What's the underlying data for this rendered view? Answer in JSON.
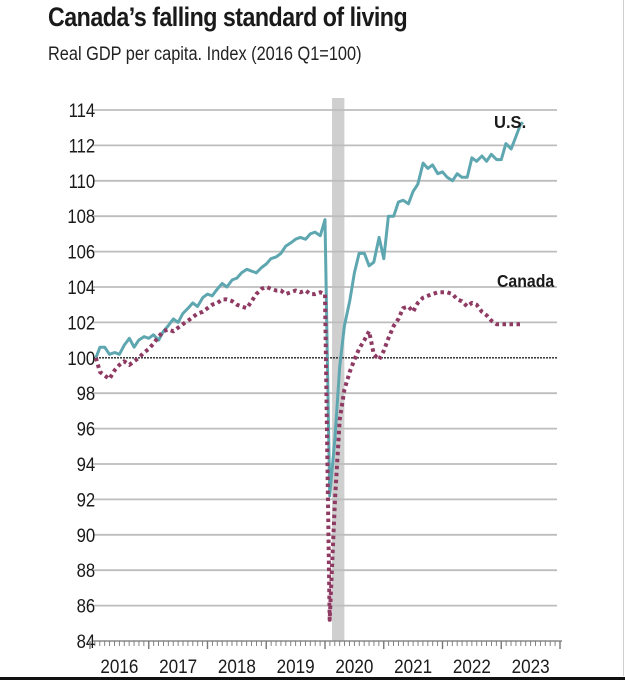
{
  "colors": {
    "us": "#5ea7b0",
    "canada": "#8e3a63",
    "grid": "#bdbdbd",
    "baseline": "#222222",
    "recession": "#cfcfcf"
  },
  "chart_data": {
    "type": "line",
    "title": "Canada’s falling standard of living",
    "subtitle": "Real GDP per capita. Index (2016 Q1=100)",
    "xlabel": "",
    "ylabel": "",
    "xlim": [
      2016,
      2024
    ],
    "ylim": [
      84,
      114
    ],
    "yticks": [
      84,
      86,
      88,
      90,
      92,
      94,
      96,
      98,
      100,
      102,
      104,
      106,
      108,
      110,
      112,
      114
    ],
    "ytick_labels": [
      "84",
      "86",
      "88",
      "90",
      "92",
      "94",
      "96",
      "98",
      "100",
      "102",
      "104",
      "106",
      "108",
      "110",
      "112",
      "114"
    ],
    "xtick_labels": [
      "2016",
      "2017",
      "2018",
      "2019",
      "2020",
      "2021",
      "2022",
      "2023"
    ],
    "grid": true,
    "baseline": 100,
    "shaded_region": {
      "label": "recession",
      "x": [
        2020.12,
        2020.33
      ]
    },
    "series": [
      {
        "name": "U.S.",
        "label": "U.S.",
        "style": "solid",
        "x": [
          2016.1,
          2016.17,
          2016.25,
          2016.33,
          2016.42,
          2016.5,
          2016.58,
          2016.67,
          2016.75,
          2016.83,
          2016.92,
          2017.0,
          2017.08,
          2017.17,
          2017.25,
          2017.33,
          2017.42,
          2017.5,
          2017.58,
          2017.67,
          2017.75,
          2017.83,
          2017.92,
          2018.0,
          2018.08,
          2018.17,
          2018.25,
          2018.33,
          2018.42,
          2018.5,
          2018.58,
          2018.67,
          2018.75,
          2018.83,
          2018.92,
          2019.0,
          2019.08,
          2019.17,
          2019.25,
          2019.33,
          2019.42,
          2019.5,
          2019.58,
          2019.67,
          2019.75,
          2019.83,
          2019.92,
          2020.0,
          2020.08,
          2020.17,
          2020.25,
          2020.33,
          2020.42,
          2020.5,
          2020.58,
          2020.67,
          2020.75,
          2020.83,
          2020.92,
          2021.0,
          2021.08,
          2021.17,
          2021.25,
          2021.33,
          2021.42,
          2021.5,
          2021.58,
          2021.67,
          2021.75,
          2021.83,
          2021.92,
          2022.0,
          2022.08,
          2022.17,
          2022.25,
          2022.33,
          2022.42,
          2022.5,
          2022.58,
          2022.67,
          2022.75,
          2022.83,
          2022.92,
          2023.0,
          2023.08,
          2023.17,
          2023.25,
          2023.33
        ],
        "values": [
          100.0,
          100.6,
          100.6,
          100.2,
          100.3,
          100.2,
          100.7,
          101.1,
          100.6,
          101.0,
          101.2,
          101.1,
          101.3,
          101.0,
          101.5,
          101.8,
          102.2,
          102.0,
          102.5,
          102.8,
          103.1,
          102.9,
          103.4,
          103.6,
          103.5,
          103.9,
          104.2,
          104.0,
          104.4,
          104.5,
          104.8,
          105.0,
          104.9,
          104.8,
          105.1,
          105.3,
          105.6,
          105.7,
          105.9,
          106.3,
          106.5,
          106.7,
          106.8,
          106.7,
          107.0,
          107.1,
          106.9,
          107.8,
          92.2,
          95.5,
          99.5,
          101.8,
          103.2,
          104.8,
          105.9,
          105.9,
          105.2,
          105.4,
          106.8,
          105.6,
          108.0,
          108.0,
          108.8,
          108.9,
          108.7,
          109.4,
          109.8,
          111.0,
          110.7,
          110.9,
          110.4,
          110.5,
          110.2,
          110.0,
          110.4,
          110.2,
          110.2,
          111.3,
          111.1,
          111.4,
          111.1,
          111.5,
          111.2,
          111.2,
          112.1,
          111.8,
          112.5,
          113.2
        ],
        "end_value": 113.3
      },
      {
        "name": "Canada",
        "label": "Canada",
        "style": "dotted",
        "x": [
          2016.1,
          2016.17,
          2016.25,
          2016.33,
          2016.42,
          2016.5,
          2016.58,
          2016.67,
          2016.75,
          2016.83,
          2016.92,
          2017.0,
          2017.08,
          2017.17,
          2017.25,
          2017.33,
          2017.42,
          2017.5,
          2017.58,
          2017.67,
          2017.75,
          2017.83,
          2017.92,
          2018.0,
          2018.08,
          2018.17,
          2018.25,
          2018.33,
          2018.42,
          2018.5,
          2018.58,
          2018.67,
          2018.75,
          2018.83,
          2018.92,
          2019.0,
          2019.08,
          2019.17,
          2019.25,
          2019.33,
          2019.42,
          2019.5,
          2019.58,
          2019.67,
          2019.75,
          2019.83,
          2019.92,
          2020.0,
          2020.08,
          2020.17,
          2020.25,
          2020.33,
          2020.42,
          2020.5,
          2020.58,
          2020.67,
          2020.75,
          2020.83,
          2020.92,
          2021.0,
          2021.08,
          2021.17,
          2021.25,
          2021.33,
          2021.42,
          2021.5,
          2021.58,
          2021.67,
          2021.75,
          2021.83,
          2021.92,
          2022.0,
          2022.08,
          2022.17,
          2022.25,
          2022.33,
          2022.42,
          2022.5,
          2022.58,
          2022.67,
          2022.75,
          2022.83,
          2022.92,
          2023.0,
          2023.08,
          2023.17,
          2023.25,
          2023.33
        ],
        "values": [
          100.0,
          99.2,
          99.0,
          98.8,
          99.3,
          99.6,
          99.8,
          99.6,
          99.8,
          100.0,
          100.3,
          100.5,
          100.8,
          101.2,
          101.5,
          101.6,
          101.5,
          101.7,
          101.9,
          102.1,
          102.3,
          102.5,
          102.6,
          102.8,
          103.0,
          103.1,
          103.3,
          103.3,
          103.2,
          103.0,
          102.9,
          102.8,
          103.2,
          103.6,
          103.9,
          104.0,
          103.9,
          103.8,
          103.8,
          103.6,
          103.7,
          103.8,
          103.7,
          103.8,
          103.6,
          103.6,
          103.7,
          103.6,
          85.2,
          92.0,
          96.5,
          98.2,
          99.2,
          99.9,
          100.5,
          101.0,
          101.5,
          100.2,
          99.9,
          100.4,
          101.1,
          101.8,
          102.2,
          102.8,
          102.9,
          102.6,
          103.1,
          103.4,
          103.5,
          103.6,
          103.7,
          103.7,
          103.7,
          103.6,
          103.3,
          103.2,
          102.9,
          103.1,
          103.0,
          102.6,
          102.4,
          102.1,
          101.9,
          101.9,
          101.9,
          101.9,
          101.9,
          101.9
        ]
      }
    ]
  }
}
